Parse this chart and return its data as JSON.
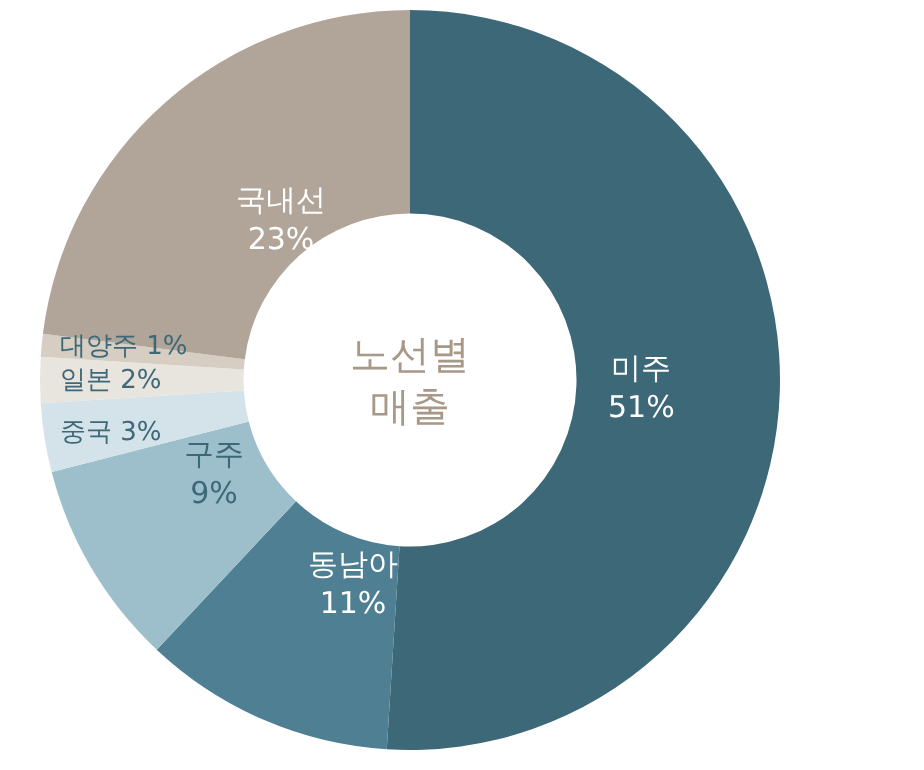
{
  "chart_data": {
    "type": "donut",
    "title": "노선별\n매출",
    "categories": [
      "미주",
      "동남아",
      "구주",
      "중국",
      "일본",
      "대양주",
      "국내선"
    ],
    "values": [
      51,
      11,
      9,
      3,
      2,
      1,
      23
    ],
    "value_labels": [
      "51%",
      "11%",
      "9%",
      "3%",
      "2%",
      "1%",
      "23%"
    ],
    "colors": [
      "#3d6878",
      "#4f7f93",
      "#9dbfcc",
      "#d4e3ea",
      "#e8e4de",
      "#d6cdc3",
      "#b0a598"
    ],
    "legend": false
  }
}
